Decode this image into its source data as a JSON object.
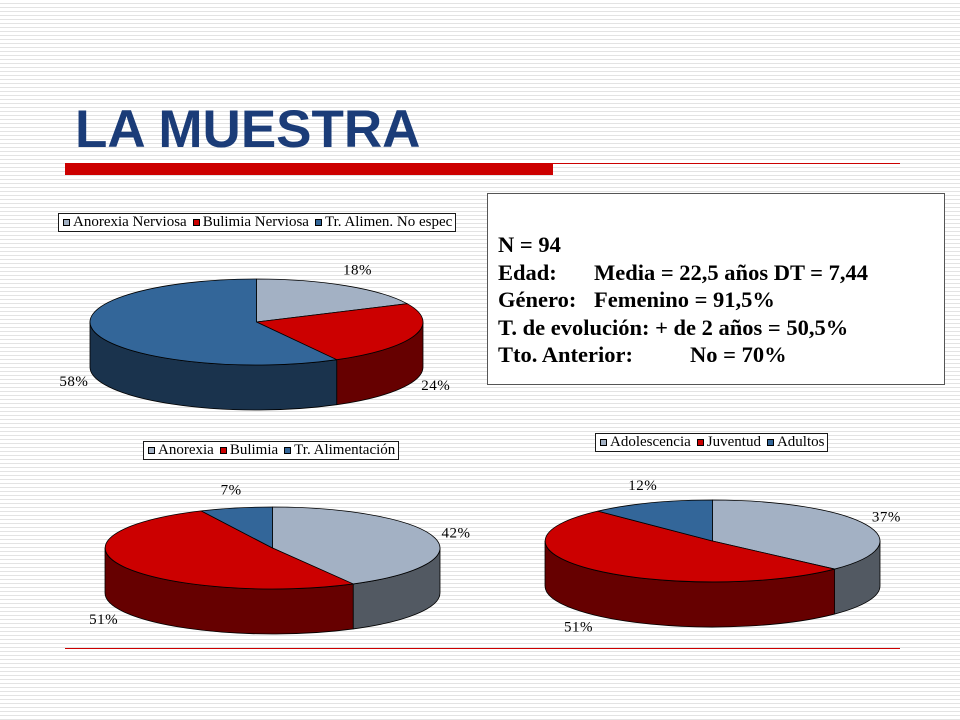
{
  "slide": {
    "title": "LA MUESTRA"
  },
  "theme": {
    "title_color": "#1B3C78",
    "accent_color": "#CC0000"
  },
  "stats_box": {
    "n": "N = 94",
    "edad": {
      "label": "Edad:",
      "value": "Media = 22,5 años DT = 7,44"
    },
    "genero": {
      "label": "Género:",
      "value": "Femenino = 91,5%"
    },
    "evolucion": "T. de evolución: + de 2 años = 50,5%",
    "tratamiento": {
      "label": "Tto. Anterior:",
      "value": "No = 70%"
    }
  },
  "chart_data": [
    {
      "type": "pie",
      "three_d": true,
      "categories": [
        "Anorexia Nerviosa",
        "Bulimia Nerviosa",
        "Tr. Alimen. No espec"
      ],
      "values": [
        18,
        24,
        58
      ],
      "data_labels": [
        "18%",
        "24%",
        "58%"
      ],
      "colors": [
        "#A3B1C4",
        "#CC0000",
        "#336699"
      ],
      "legend": "top"
    },
    {
      "type": "pie",
      "three_d": true,
      "categories": [
        "Anorexia",
        "Bulimia",
        "Tr. Alimentación"
      ],
      "values": [
        42,
        51,
        7
      ],
      "data_labels": [
        "42%",
        "51%",
        "7%"
      ],
      "colors": [
        "#A3B1C4",
        "#CC0000",
        "#336699"
      ],
      "legend": "top"
    },
    {
      "type": "pie",
      "three_d": true,
      "categories": [
        "Adolescencia",
        "Juventud",
        "Adultos"
      ],
      "values": [
        37,
        51,
        12
      ],
      "data_labels": [
        "37%",
        "51%",
        "12%"
      ],
      "colors": [
        "#A3B1C4",
        "#CC0000",
        "#336699"
      ],
      "legend": "top"
    }
  ]
}
